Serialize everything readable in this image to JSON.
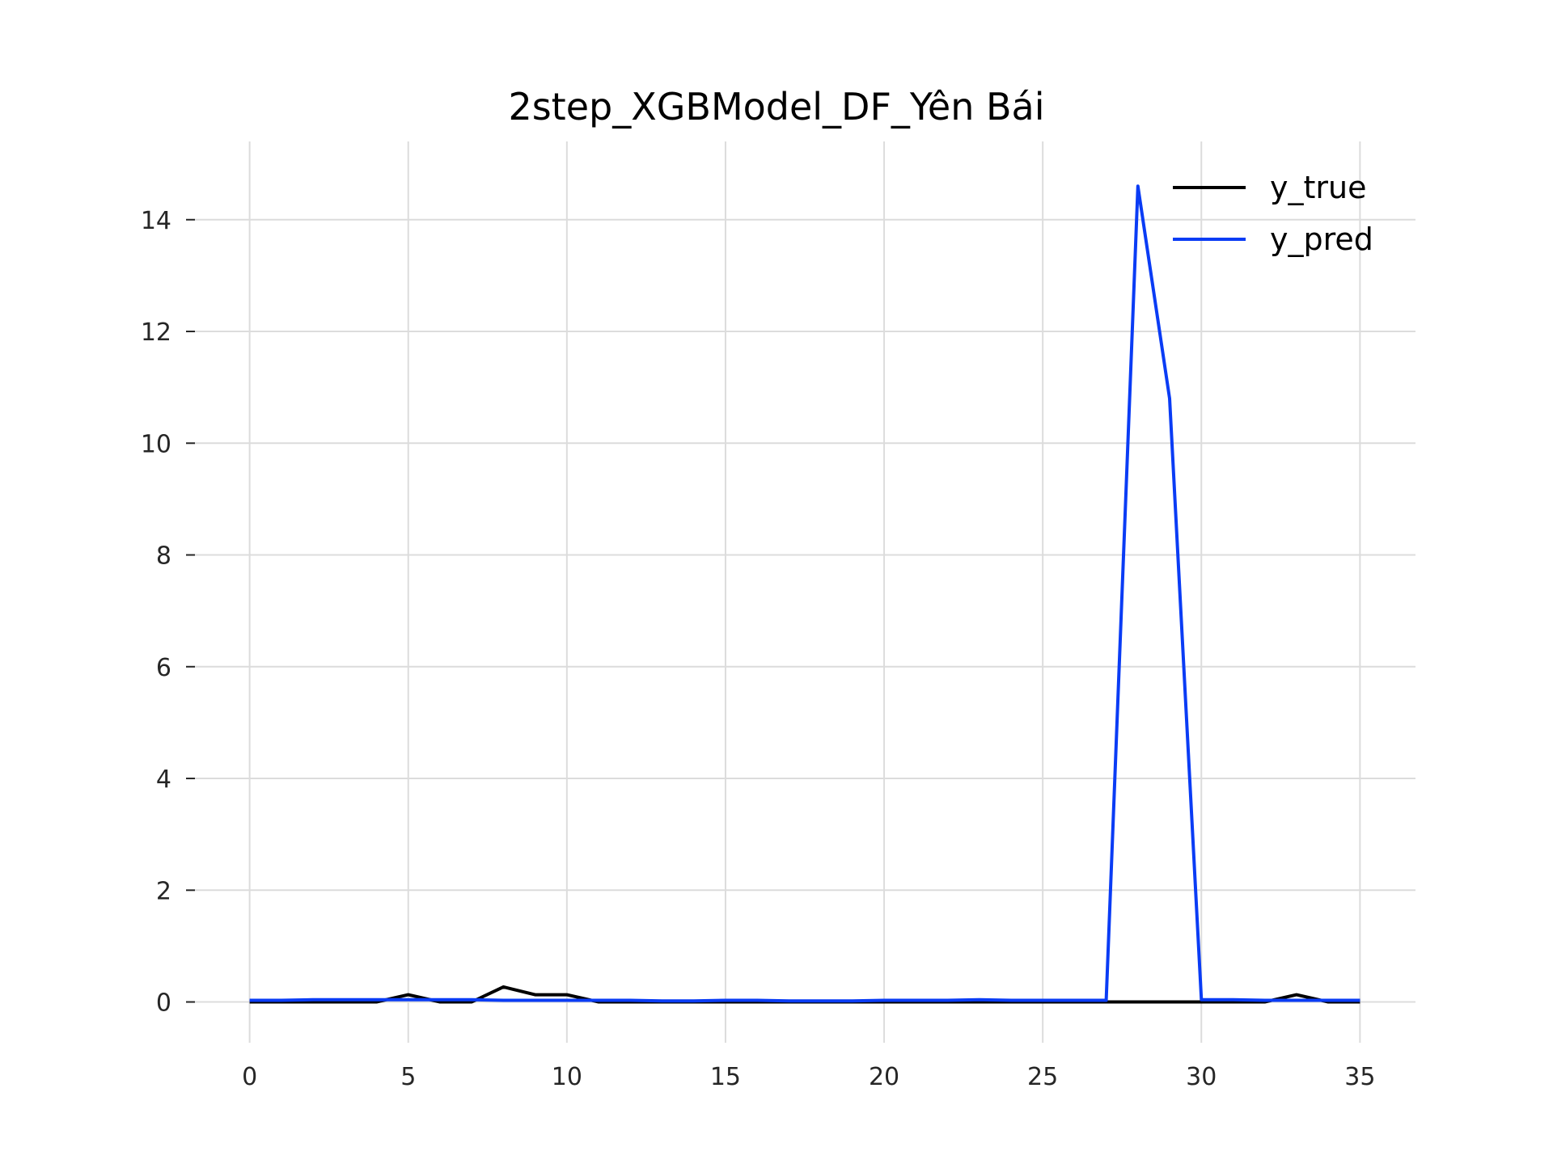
{
  "chart_data": {
    "type": "line",
    "title": "2step_XGBModel_DF_Yên Bái",
    "xlabel": "",
    "ylabel": "",
    "xlim": [
      -1.75,
      36.75
    ],
    "ylim": [
      -0.73,
      15.4
    ],
    "xticks": [
      0,
      5,
      10,
      15,
      20,
      25,
      30,
      35
    ],
    "yticks": [
      0,
      2,
      4,
      6,
      8,
      10,
      12,
      14
    ],
    "grid": true,
    "legend_position": "top-right",
    "x": [
      0,
      1,
      2,
      3,
      4,
      5,
      6,
      7,
      8,
      9,
      10,
      11,
      12,
      13,
      14,
      15,
      16,
      17,
      18,
      19,
      20,
      21,
      22,
      23,
      24,
      25,
      26,
      27,
      28,
      29,
      30,
      31,
      32,
      33,
      34,
      35
    ],
    "series": [
      {
        "name": "y_true",
        "color": "#000000",
        "values": [
          0,
          0,
          0,
          0,
          0,
          0.13,
          0,
          0,
          0.27,
          0.13,
          0.13,
          0,
          0,
          0,
          0,
          0,
          0,
          0,
          0,
          0,
          0,
          0,
          0,
          0,
          0,
          0,
          0,
          0,
          0,
          0,
          0,
          0,
          0,
          0.13,
          0,
          0
        ]
      },
      {
        "name": "y_pred",
        "color": "#0a3cf5",
        "values": [
          0.03,
          0.03,
          0.04,
          0.04,
          0.04,
          0.04,
          0.04,
          0.04,
          0.03,
          0.03,
          0.03,
          0.03,
          0.03,
          0.02,
          0.02,
          0.03,
          0.03,
          0.02,
          0.02,
          0.02,
          0.03,
          0.03,
          0.03,
          0.04,
          0.03,
          0.03,
          0.03,
          0.03,
          14.6,
          10.8,
          0.04,
          0.04,
          0.03,
          0.03,
          0.03,
          0.03
        ]
      }
    ]
  }
}
